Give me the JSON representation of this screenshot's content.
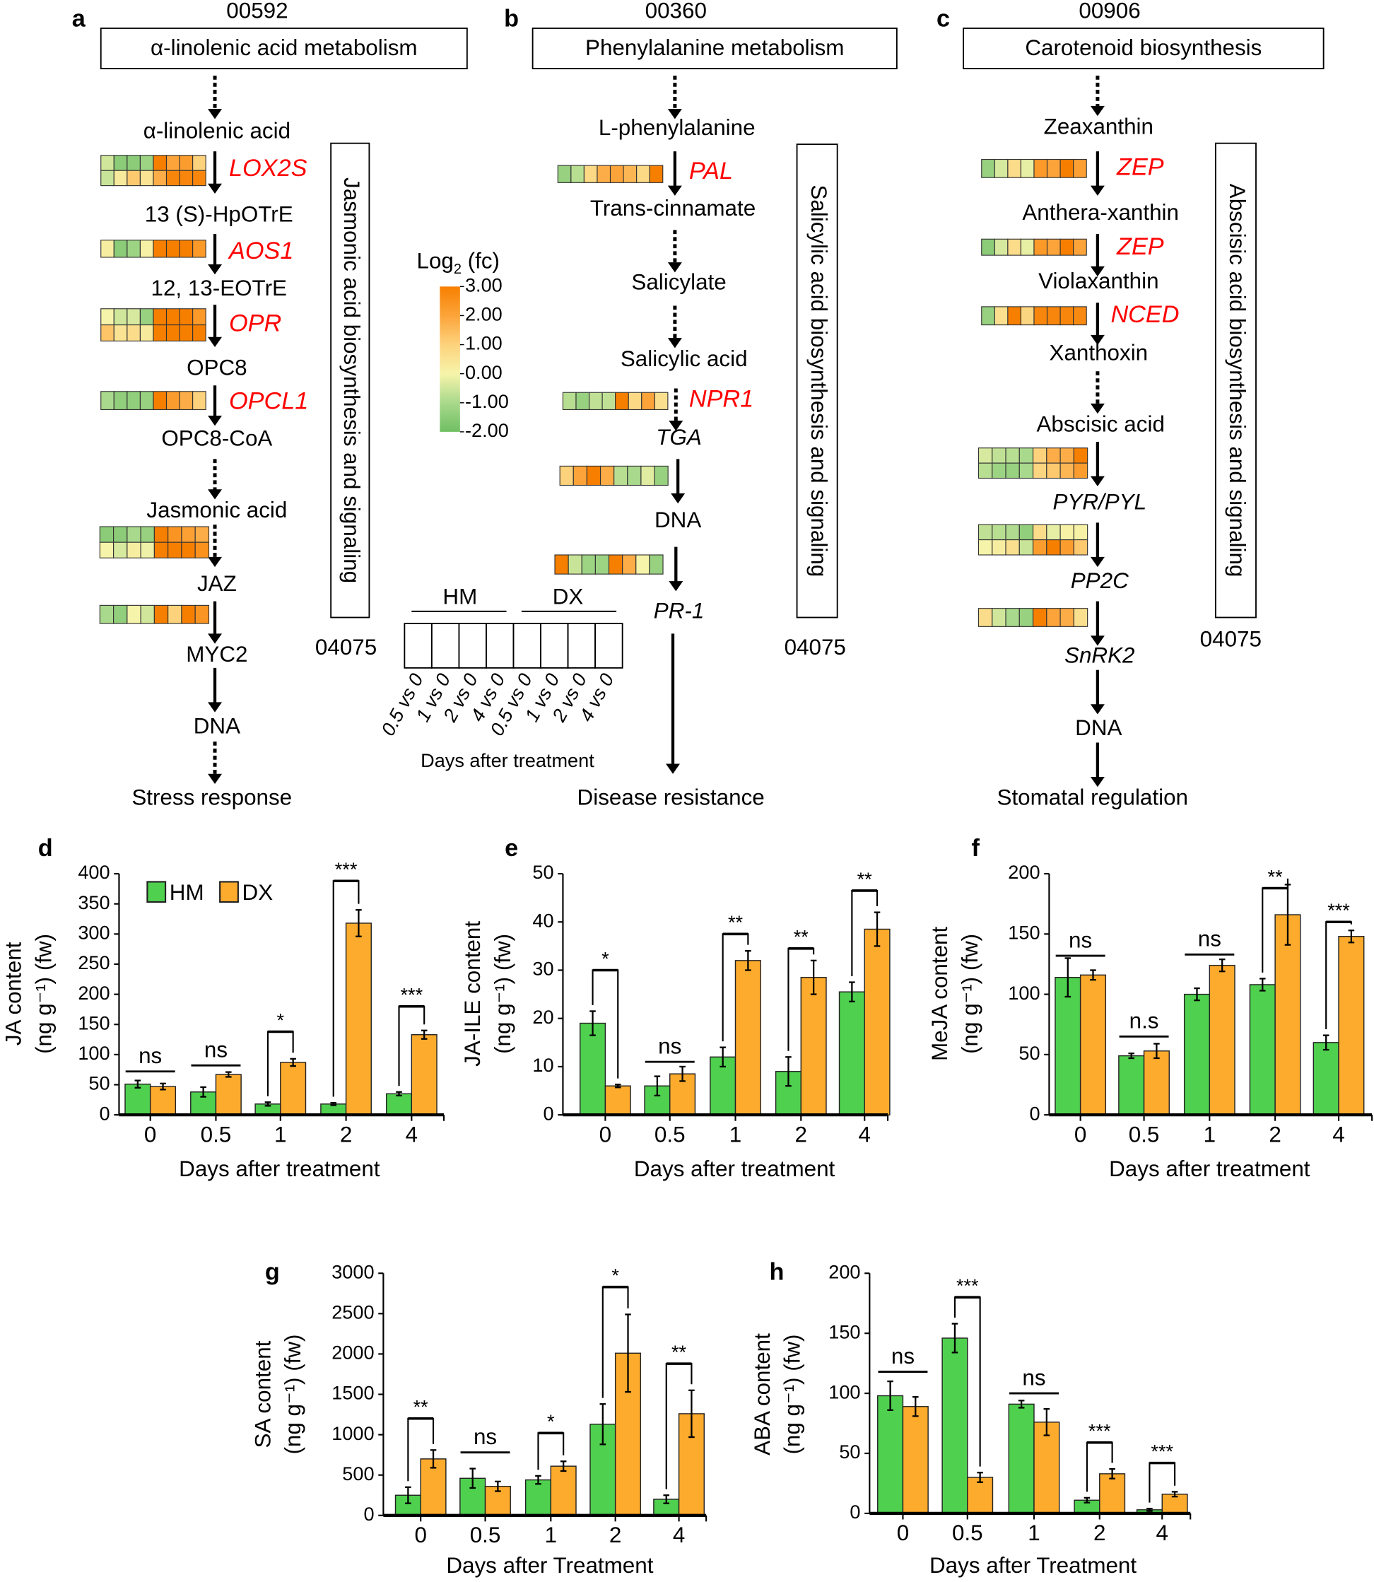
{
  "colors": {
    "HM": "#4fd04f",
    "DX": "#fdab2d",
    "gene_label": "#ff0000",
    "heat_scale": [
      {
        "v": -2,
        "c": "#6fbf63"
      },
      {
        "v": -1,
        "c": "#a9d98c"
      },
      {
        "v": 0,
        "c": "#f6f4aa"
      },
      {
        "v": 1,
        "c": "#fdd27c"
      },
      {
        "v": 2,
        "c": "#fca43a"
      },
      {
        "v": 3,
        "c": "#f77f00"
      }
    ]
  },
  "panels": [
    {
      "label": "a",
      "kegg_id": "00592",
      "title": "α-linolenic acid metabolism",
      "side_box": "Jasmonic acid biosynthesis and signaling",
      "side_id": "04075",
      "nodes": [
        "α-linolenic acid",
        "13 (S)-HpOTrE",
        "12, 13-EOTrE",
        "OPC8",
        "OPC8-CoA",
        "Jasmonic acid",
        "JAZ",
        "MYC2",
        "DNA",
        "Stress response"
      ],
      "heatmaps": [
        {
          "gene": "LOX2S",
          "rows": [
            [
              -0.5,
              -1.5,
              -1.5,
              -1.2,
              3,
              2,
              2.2,
              1
            ],
            [
              -0.6,
              0.3,
              1.2,
              0.5,
              1.8,
              2.8,
              2.8,
              2.8
            ]
          ]
        },
        {
          "gene": "AOS1",
          "rows": [
            [
              0.2,
              -1.5,
              -1.2,
              0.1,
              3,
              3,
              3,
              2.3
            ]
          ]
        },
        {
          "gene": "OPR",
          "rows": [
            [
              0,
              -0.5,
              -0.4,
              -1.3,
              3,
              3,
              3,
              2.3
            ],
            [
              1.3,
              0.5,
              0.7,
              0.3,
              3,
              3,
              3,
              3
            ]
          ]
        },
        {
          "gene": "OPCL1",
          "rows": [
            [
              -1,
              -1.4,
              -1.4,
              -1.3,
              3,
              2.2,
              1.8,
              1
            ]
          ]
        },
        {
          "gene": "",
          "rows": [
            [
              -1.5,
              -1.5,
              -1,
              -1.3,
              3,
              2.4,
              2.1,
              1.8
            ],
            [
              0,
              -0.4,
              0.2,
              -0.1,
              3,
              3,
              3,
              2.5
            ]
          ]
        },
        {
          "gene": "",
          "rows": [
            [
              -1,
              -1.4,
              0,
              -0.5,
              3,
              1,
              3,
              2.4
            ]
          ]
        }
      ]
    },
    {
      "label": "b",
      "kegg_id": "00360",
      "title": "Phenylalanine metabolism",
      "side_box": "Salicylic acid biosynthesis and signaling",
      "side_id": "04075",
      "nodes": [
        "L-phenylalanine",
        "Trans-cinnamate",
        "Salicylate",
        "Salicylic acid",
        "TGA",
        "DNA",
        "PR-1",
        "Disease resistance"
      ],
      "heatmaps": [
        {
          "gene": "PAL",
          "rows": [
            [
              -1.3,
              -0.8,
              0.8,
              1.8,
              2,
              1.6,
              0.8,
              3
            ]
          ]
        },
        {
          "gene": "NPR1",
          "rows": [
            [
              -0.8,
              -1.3,
              -0.7,
              -0.7,
              3,
              0.8,
              2,
              0.6
            ]
          ]
        },
        {
          "gene": "",
          "rows": [
            [
              1,
              2,
              3,
              1.8,
              -0.8,
              -1,
              -0.3,
              -1.3
            ]
          ]
        },
        {
          "gene": "",
          "rows": [
            [
              3,
              -0.6,
              -1.2,
              -1.2,
              3,
              1.8,
              0,
              -1.3
            ]
          ]
        }
      ]
    },
    {
      "label": "c",
      "kegg_id": "00906",
      "title": "Carotenoid biosynthesis",
      "side_box": "Abscisic acid biosynthesis and signaling",
      "side_id": "04075",
      "nodes": [
        "Zeaxanthin",
        "Anthera-xanthin",
        "Violaxanthin",
        "Xanthoxin",
        "Abscisic acid",
        "PYR/PYL",
        "PP2C",
        "SnRK2",
        "DNA",
        "Stomatal regulation"
      ],
      "heatmaps": [
        {
          "gene": "ZEP",
          "rows": [
            [
              -1.3,
              -0.4,
              0.7,
              -0.2,
              2.3,
              2,
              3,
              2.1
            ]
          ]
        },
        {
          "gene": "ZEP",
          "rows": [
            [
              -1.5,
              -0.4,
              0.7,
              -0.2,
              2.3,
              2,
              3,
              2
            ]
          ]
        },
        {
          "gene": "NCED",
          "rows": [
            [
              -1.3,
              0.6,
              3,
              0.9,
              2.8,
              2.8,
              2.8,
              2.7
            ]
          ]
        },
        {
          "gene": "",
          "rows": [
            [
              -0.4,
              -0.7,
              -0.8,
              -1,
              1,
              1.8,
              1.8,
              3
            ],
            [
              -0.8,
              -1.2,
              -1.3,
              -1,
              0.9,
              1.2,
              1.6,
              2.2
            ]
          ]
        },
        {
          "gene": "",
          "rows": [
            [
              -0.7,
              -0.8,
              -0.9,
              -1.4,
              0.7,
              -0.2,
              0.1,
              0.1
            ],
            [
              0,
              0.2,
              0.6,
              -0.6,
              2.2,
              3,
              2.2,
              1.2
            ]
          ]
        },
        {
          "gene": "",
          "rows": [
            [
              0.7,
              -0.5,
              -1,
              -1.3,
              3,
              2,
              1.8,
              0.6
            ]
          ]
        }
      ]
    }
  ],
  "legend": {
    "title": "Log",
    "sub": "2",
    "title_suffix": " (fc)",
    "ticks": [
      "3.00",
      "2.00",
      "1.00",
      "0.00",
      "-1.00",
      "-2.00"
    ],
    "range": [
      -2,
      3
    ]
  },
  "key": {
    "group1": "HM",
    "group2": "DX",
    "comparisons": [
      "0.5 vs 0",
      "1 vs 0",
      "2 vs 0",
      "4 vs 0",
      "0.5 vs 0",
      "1 vs 0",
      "2 vs 0",
      "4 vs 0"
    ],
    "xlabel": "Days after treatment"
  },
  "chart_data": [
    {
      "panel": "d",
      "type": "bar",
      "categories": [
        "0",
        "0.5",
        "1",
        "2",
        "4"
      ],
      "xlabel": "Days after treatment",
      "ylabel": "JA content",
      "ylabel2": "(ng g⁻¹) (fw)",
      "ylim": [
        0,
        400
      ],
      "yticks": [
        0,
        50,
        100,
        150,
        200,
        250,
        300,
        350,
        400
      ],
      "legend": [
        "HM",
        "DX"
      ],
      "legend_position": "top-left",
      "series": [
        {
          "name": "HM",
          "values": [
            51,
            38,
            18,
            18,
            35
          ],
          "errors": [
            6,
            8,
            3,
            2,
            3
          ]
        },
        {
          "name": "DX",
          "values": [
            47,
            67,
            87,
            318,
            133
          ],
          "errors": [
            5,
            4,
            6,
            22,
            7
          ]
        }
      ],
      "significance": [
        {
          "label": "ns",
          "type": "line",
          "y": 72
        },
        {
          "label": "ns",
          "type": "line",
          "y": 82
        },
        {
          "label": "*",
          "type": "bracket",
          "y": 138
        },
        {
          "label": "***",
          "type": "bracket",
          "y": 388
        },
        {
          "label": "***",
          "type": "bracket",
          "y": 180
        }
      ]
    },
    {
      "panel": "e",
      "type": "bar",
      "categories": [
        "0",
        "0.5",
        "1",
        "2",
        "4"
      ],
      "xlabel": "Days after treatment",
      "ylabel": "JA-ILE content",
      "ylabel2": "(ng g⁻¹) (fw)",
      "ylim": [
        0,
        50
      ],
      "yticks": [
        0,
        10,
        20,
        30,
        40,
        50
      ],
      "series": [
        {
          "name": "HM",
          "values": [
            19,
            6,
            12,
            9,
            25.5
          ],
          "errors": [
            2.5,
            2,
            2,
            3,
            2
          ]
        },
        {
          "name": "DX",
          "values": [
            6,
            8.5,
            32,
            28.5,
            38.5
          ],
          "errors": [
            0.3,
            1.5,
            2,
            3.5,
            3.5
          ]
        }
      ],
      "significance": [
        {
          "label": "*",
          "type": "bracket",
          "y": 30
        },
        {
          "label": "ns",
          "type": "line",
          "y": 11
        },
        {
          "label": "**",
          "type": "bracket",
          "y": 37.5
        },
        {
          "label": "**",
          "type": "bracket",
          "y": 34.5
        },
        {
          "label": "**",
          "type": "bracket",
          "y": 46.5
        }
      ]
    },
    {
      "panel": "f",
      "type": "bar",
      "categories": [
        "0",
        "0.5",
        "1",
        "2",
        "4"
      ],
      "xlabel": "Days after treatment",
      "ylabel": "MeJA content",
      "ylabel2": "(ng g⁻¹) (fw)",
      "ylim": [
        0,
        200
      ],
      "yticks": [
        0,
        50,
        100,
        150,
        200
      ],
      "series": [
        {
          "name": "HM",
          "values": [
            114,
            49,
            100,
            108,
            60
          ],
          "errors": [
            16,
            2,
            5,
            5,
            6
          ]
        },
        {
          "name": "DX",
          "values": [
            116,
            53,
            124,
            166,
            148
          ],
          "errors": [
            4,
            6,
            5,
            25,
            5
          ]
        }
      ],
      "significance": [
        {
          "label": "ns",
          "type": "line",
          "y": 132
        },
        {
          "label": "n.s",
          "type": "line",
          "y": 65
        },
        {
          "label": "ns",
          "type": "line",
          "y": 133
        },
        {
          "label": "**",
          "type": "bracket",
          "y": 188
        },
        {
          "label": "***",
          "type": "bracket",
          "y": 160
        }
      ]
    },
    {
      "panel": "g",
      "type": "bar",
      "categories": [
        "0",
        "0.5",
        "1",
        "2",
        "4"
      ],
      "xlabel": "Days after Treatment",
      "ylabel": "SA content",
      "ylabel2": "(ng g⁻¹) (fw)",
      "ylim": [
        0,
        3000
      ],
      "yticks": [
        0,
        500,
        1000,
        1500,
        2000,
        2500,
        3000
      ],
      "series": [
        {
          "name": "HM",
          "values": [
            250,
            460,
            440,
            1130,
            200
          ],
          "errors": [
            100,
            120,
            50,
            250,
            50
          ]
        },
        {
          "name": "DX",
          "values": [
            700,
            360,
            610,
            2010,
            1260
          ],
          "errors": [
            110,
            60,
            60,
            480,
            290
          ]
        }
      ],
      "significance": [
        {
          "label": "**",
          "type": "bracket",
          "y": 1200
        },
        {
          "label": "ns",
          "type": "line",
          "y": 780
        },
        {
          "label": "*",
          "type": "bracket",
          "y": 1020
        },
        {
          "label": "*",
          "type": "bracket",
          "y": 2830
        },
        {
          "label": "**",
          "type": "bracket",
          "y": 1880
        }
      ]
    },
    {
      "panel": "h",
      "type": "bar",
      "categories": [
        "0",
        "0.5",
        "1",
        "2",
        "4"
      ],
      "xlabel": "Days after Treatment",
      "ylabel": "ABA content",
      "ylabel2": "(ng g⁻¹) (fw)",
      "ylim": [
        0,
        200
      ],
      "yticks": [
        0,
        50,
        100,
        150,
        200
      ],
      "series": [
        {
          "name": "HM",
          "values": [
            98,
            146,
            91,
            11,
            3
          ],
          "errors": [
            12,
            12,
            3,
            2,
            1
          ]
        },
        {
          "name": "DX",
          "values": [
            89,
            30,
            76,
            33,
            16
          ],
          "errors": [
            8,
            4,
            11,
            4,
            2
          ]
        }
      ],
      "significance": [
        {
          "label": "ns",
          "type": "line",
          "y": 118
        },
        {
          "label": "***",
          "type": "bracket",
          "y": 180
        },
        {
          "label": "ns",
          "type": "line",
          "y": 100
        },
        {
          "label": "***",
          "type": "bracket",
          "y": 59
        },
        {
          "label": "***",
          "type": "bracket",
          "y": 42
        }
      ]
    }
  ]
}
